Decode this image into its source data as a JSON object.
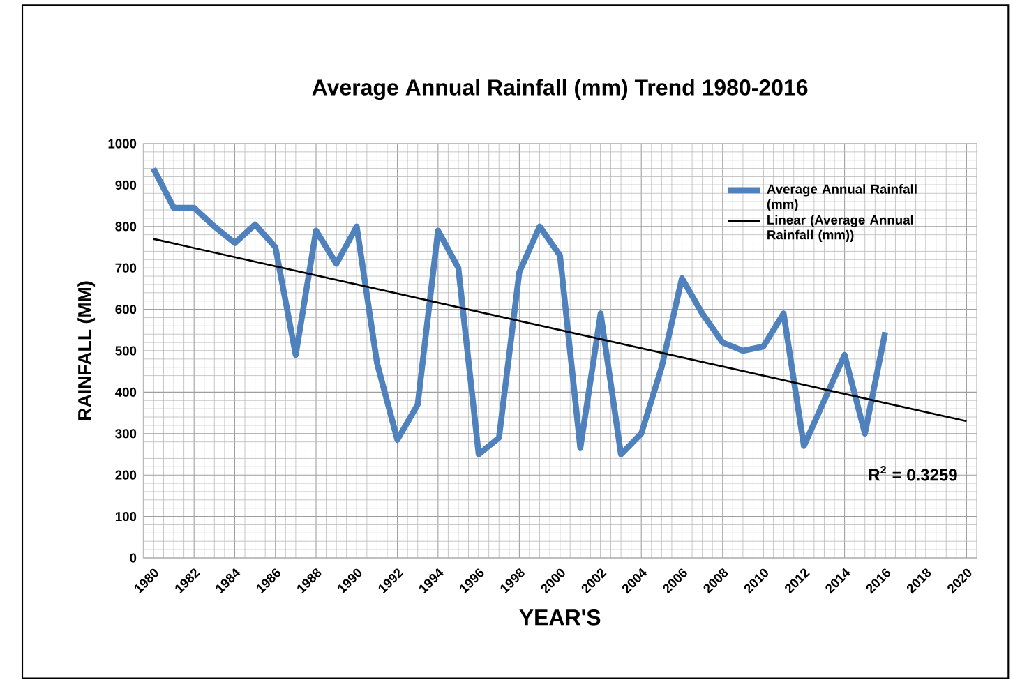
{
  "chart_data": {
    "type": "line",
    "title": "Average Annual Rainfall (mm) Trend 1980-2016",
    "xlabel": "YEAR'S",
    "ylabel": "RAINFALL (MM)",
    "x": [
      1980,
      1981,
      1982,
      1983,
      1984,
      1985,
      1986,
      1987,
      1988,
      1989,
      1990,
      1991,
      1992,
      1993,
      1994,
      1995,
      1996,
      1997,
      1998,
      1999,
      2000,
      2001,
      2002,
      2003,
      2004,
      2005,
      2006,
      2007,
      2008,
      2009,
      2010,
      2011,
      2012,
      2013,
      2014,
      2015,
      2016
    ],
    "series": [
      {
        "name": "Average Annual Rainfall (mm)",
        "color": "#4f81bd",
        "values": [
          940,
          845,
          845,
          800,
          760,
          805,
          750,
          490,
          790,
          710,
          800,
          470,
          285,
          370,
          790,
          700,
          250,
          290,
          690,
          800,
          730,
          265,
          590,
          250,
          300,
          460,
          675,
          590,
          520,
          500,
          510,
          590,
          270,
          380,
          490,
          300,
          545
        ]
      },
      {
        "name": "Linear (Average Annual Rainfall (mm))",
        "color": "#000000",
        "x": [
          1980,
          2020
        ],
        "values": [
          770,
          330
        ]
      }
    ],
    "xlim": [
      1979.5,
      2020.5
    ],
    "xticks": [
      1980,
      1982,
      1984,
      1986,
      1988,
      1990,
      1992,
      1994,
      1996,
      1998,
      2000,
      2002,
      2004,
      2006,
      2008,
      2010,
      2012,
      2014,
      2016,
      2018,
      2020
    ],
    "ylim": [
      0,
      1000
    ],
    "yticks": [
      0,
      100,
      200,
      300,
      400,
      500,
      600,
      700,
      800,
      900,
      1000
    ],
    "grid": true,
    "legend": "top right",
    "marker": "none",
    "line_style": "solid",
    "annotations": [
      "R$^{2}$ = 0.3259"
    ]
  }
}
